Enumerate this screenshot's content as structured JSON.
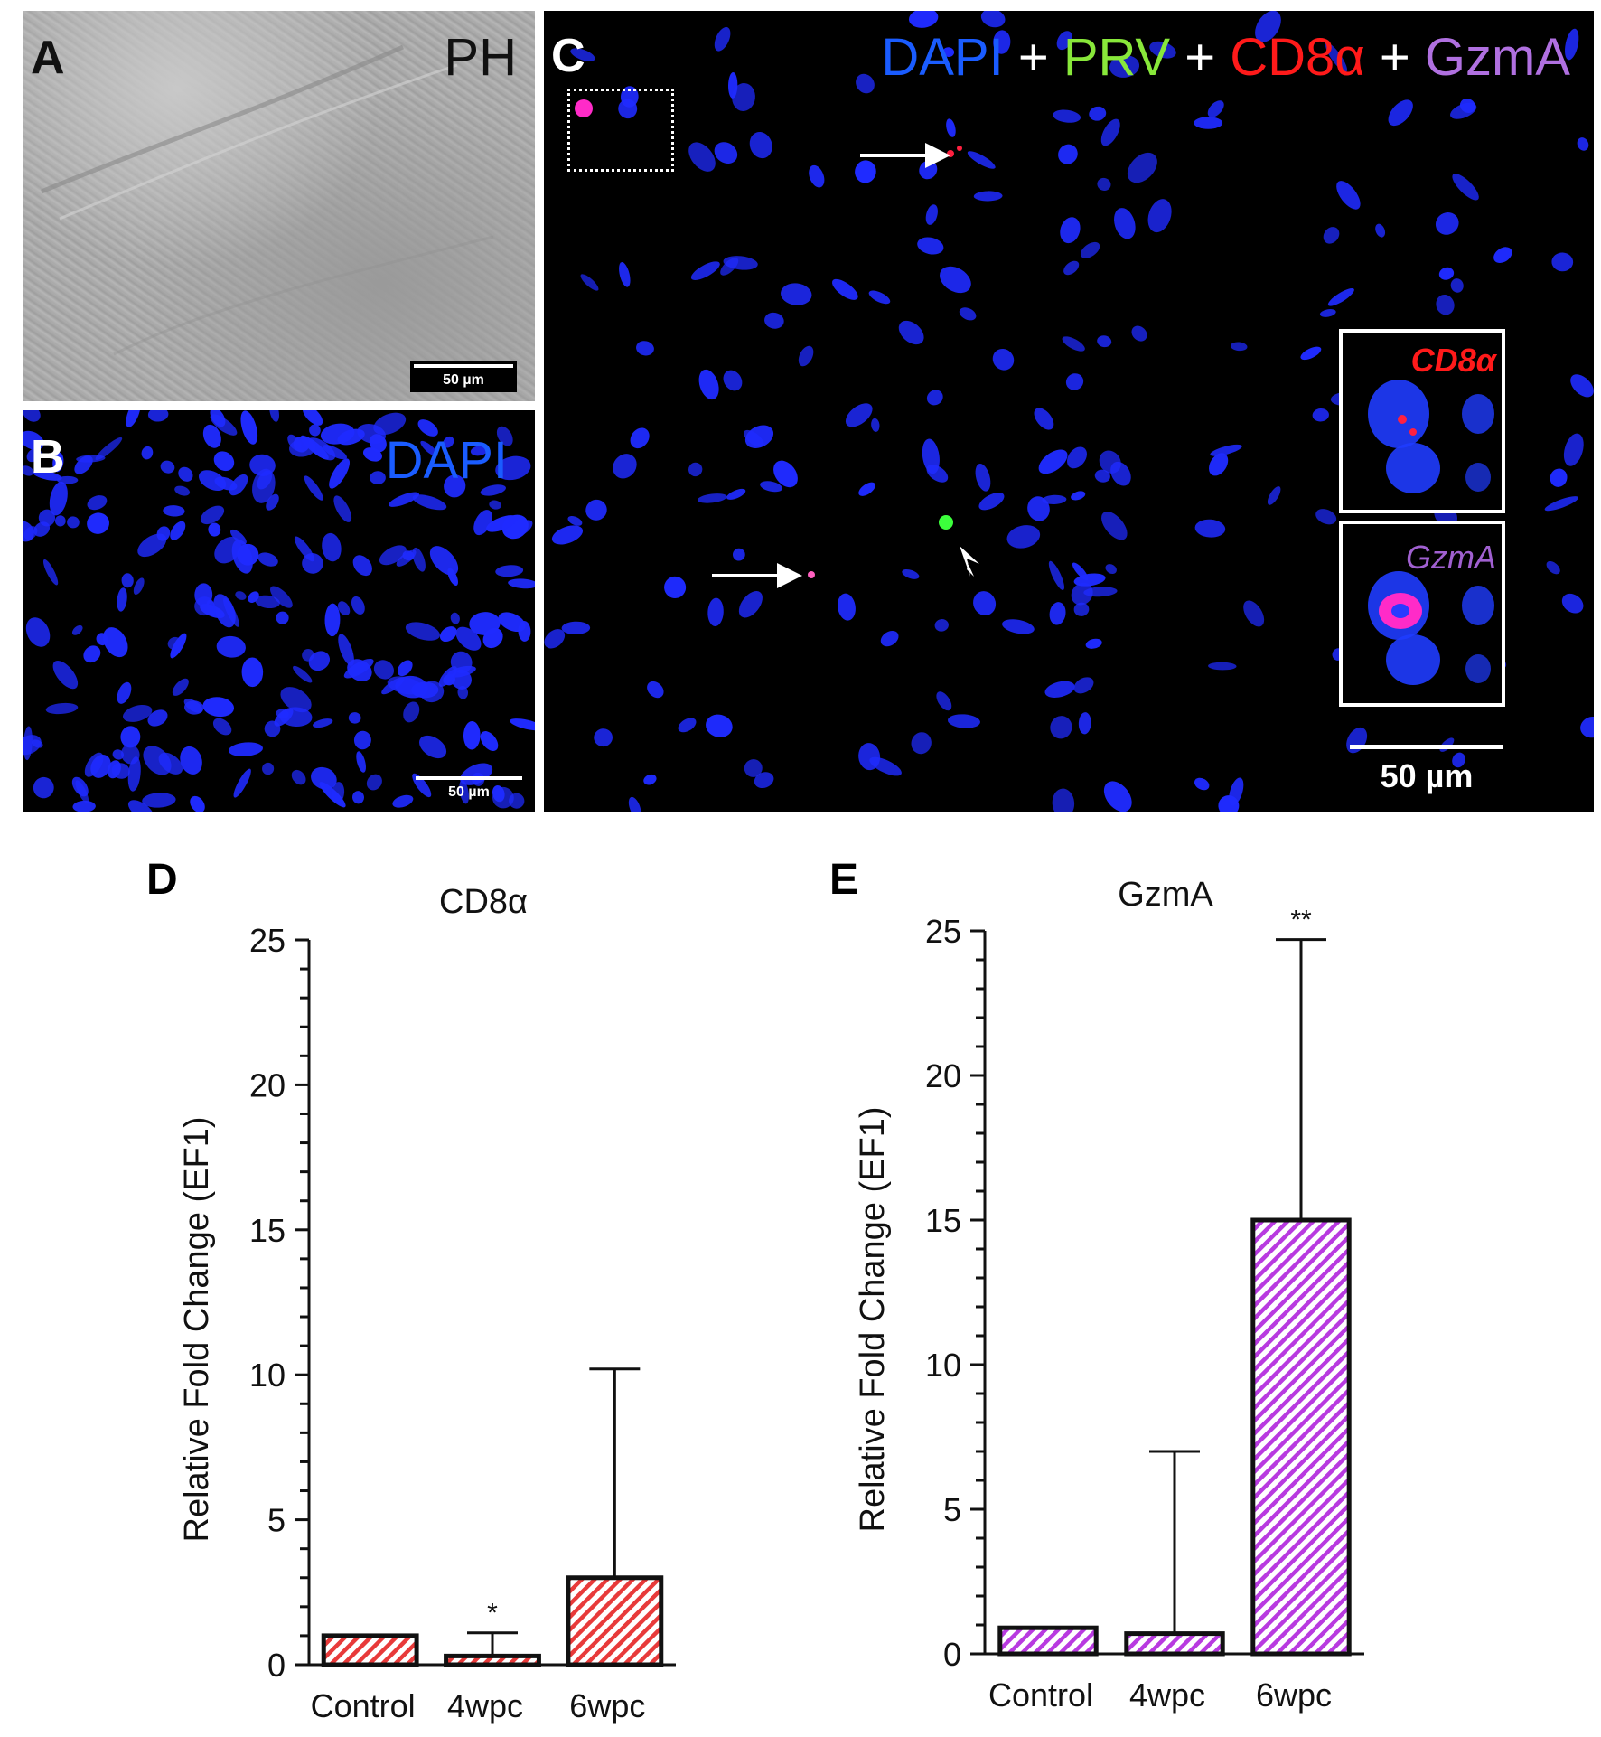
{
  "panels": {
    "A": {
      "label": "A",
      "channel": "PH",
      "scalebar": "50 µm"
    },
    "B": {
      "label": "B",
      "channel": "DAPI",
      "scalebar": "50 µm"
    },
    "C": {
      "label": "C",
      "channels": [
        {
          "text": "DAPI",
          "color": "#1a5cff"
        },
        {
          "text": "+",
          "color": "#ffffff"
        },
        {
          "text": "PRV",
          "color": "#88e83a"
        },
        {
          "text": "+",
          "color": "#ffffff"
        },
        {
          "text": "CD8α",
          "color": "#ff1a1a"
        },
        {
          "text": "+",
          "color": "#ffffff"
        },
        {
          "text": "GzmA",
          "color": "#b070e0"
        }
      ],
      "inset_top": "CD8α",
      "inset_bottom": "GzmA",
      "scalebar": "50 µm"
    },
    "D": {
      "label": "D"
    },
    "E": {
      "label": "E"
    }
  },
  "chart_data": [
    {
      "type": "bar",
      "panel": "D",
      "title": "CD8α",
      "ylabel": "Relative Fold Change (EF1)",
      "categories": [
        "Control",
        "4wpc",
        "6wpc"
      ],
      "values": [
        1,
        0.3,
        3
      ],
      "error_upper": [
        1,
        1.1,
        10.2
      ],
      "significance": [
        "",
        "*",
        ""
      ],
      "ylim": [
        0,
        25
      ],
      "yticks": [
        "0",
        "5",
        "10",
        "15",
        "20",
        "25"
      ],
      "color": "#e83a3a"
    },
    {
      "type": "bar",
      "panel": "E",
      "title": "GzmA",
      "ylabel": "Relative Fold Change (EF1)",
      "categories": [
        "Control",
        "4wpc",
        "6wpc"
      ],
      "values": [
        0.9,
        0.7,
        15
      ],
      "error_upper": [
        0.9,
        7,
        24.7
      ],
      "significance": [
        "",
        "",
        "**"
      ],
      "ylim": [
        0,
        25
      ],
      "yticks": [
        "0",
        "5",
        "10",
        "15",
        "20",
        "25"
      ],
      "color": "#b83ae0"
    }
  ]
}
